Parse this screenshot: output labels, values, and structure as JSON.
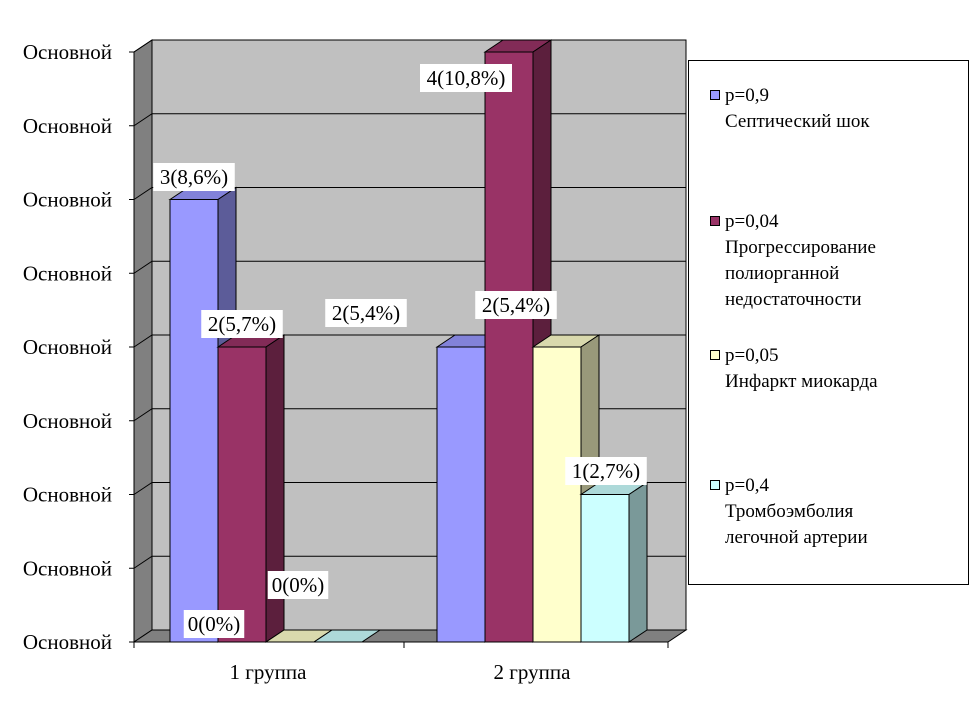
{
  "chart_data": {
    "type": "bar",
    "categories": [
      "1 группа",
      "2 группа"
    ],
    "y_tick_labels": [
      "Основной",
      "Основной",
      "Основной",
      "Основной",
      "Основной",
      "Основной",
      "Основной",
      "Основной",
      "Основной"
    ],
    "ylim": [
      0,
      4
    ],
    "grid": true,
    "legend_position": "right",
    "series": [
      {
        "name": "р=0,9 Септический шок",
        "legend_lines": [
          "р=0,9",
          "Септический шок"
        ],
        "color": "#9999ff",
        "values": [
          3,
          2
        ],
        "labels": [
          "3(8,6%)",
          "2(5,4%)"
        ]
      },
      {
        "name": "р=0,04 Прогрессирование полиорганной недостаточности",
        "legend_lines": [
          "р=0,04",
          "Прогрессирование",
          "полиорганной",
          "недостаточности"
        ],
        "color": "#993366",
        "values": [
          2,
          4
        ],
        "labels": [
          "2(5,7%)",
          "4(10,8%)"
        ]
      },
      {
        "name": "р=0,05 Инфаркт миокарда",
        "legend_lines": [
          "р=0,05",
          "Инфаркт миокарда"
        ],
        "color": "#ffffcc",
        "values": [
          0,
          2
        ],
        "labels": [
          "0(0%)",
          "2(5,4%)"
        ]
      },
      {
        "name": "р=0,4 Тромбоэмболия легочной артерии",
        "legend_lines": [
          "р=0,4",
          "Тромбоэмболия",
          "легочной артерии"
        ],
        "color": "#ccffff",
        "values": [
          0,
          1
        ],
        "labels": [
          "0(0%)",
          "1(2,7%)"
        ]
      }
    ]
  }
}
